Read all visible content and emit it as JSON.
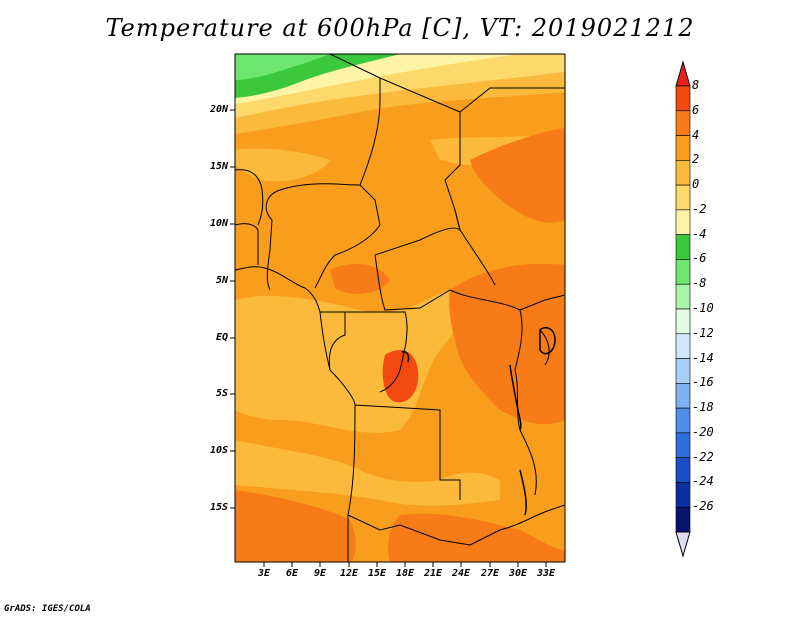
{
  "title": "Temperature at 600hPa [C], VT: 2019021212",
  "credit": "GrADS: IGES/COLA",
  "lat_ticks": [
    "20N",
    "15N",
    "10N",
    "5N",
    "EQ",
    "5S",
    "10S",
    "15S"
  ],
  "lon_ticks": [
    "3E",
    "6E",
    "9E",
    "12E",
    "15E",
    "18E",
    "21E",
    "24E",
    "27E",
    "30E",
    "33E"
  ],
  "colorbar": {
    "labels": [
      "8",
      "6",
      "4",
      "2",
      "0",
      "-2",
      "-4",
      "-6",
      "-8",
      "-10",
      "-12",
      "-14",
      "-16",
      "-18",
      "-20",
      "-22",
      "-24",
      "-26"
    ],
    "colors_top_to_bottom": [
      "#e8201c",
      "#f24a10",
      "#f77b16",
      "#f99e1c",
      "#fbba3c",
      "#fdd86a",
      "#fef4a6",
      "#3cc83c",
      "#6ce66c",
      "#a8f4a8",
      "#e2fae2",
      "#cfe7fb",
      "#a8d0f7",
      "#7db2f1",
      "#4f8fe8",
      "#2d6fdc",
      "#1a50c6",
      "#0e2fa0",
      "#0a1470",
      "#dcdcf4"
    ]
  }
}
